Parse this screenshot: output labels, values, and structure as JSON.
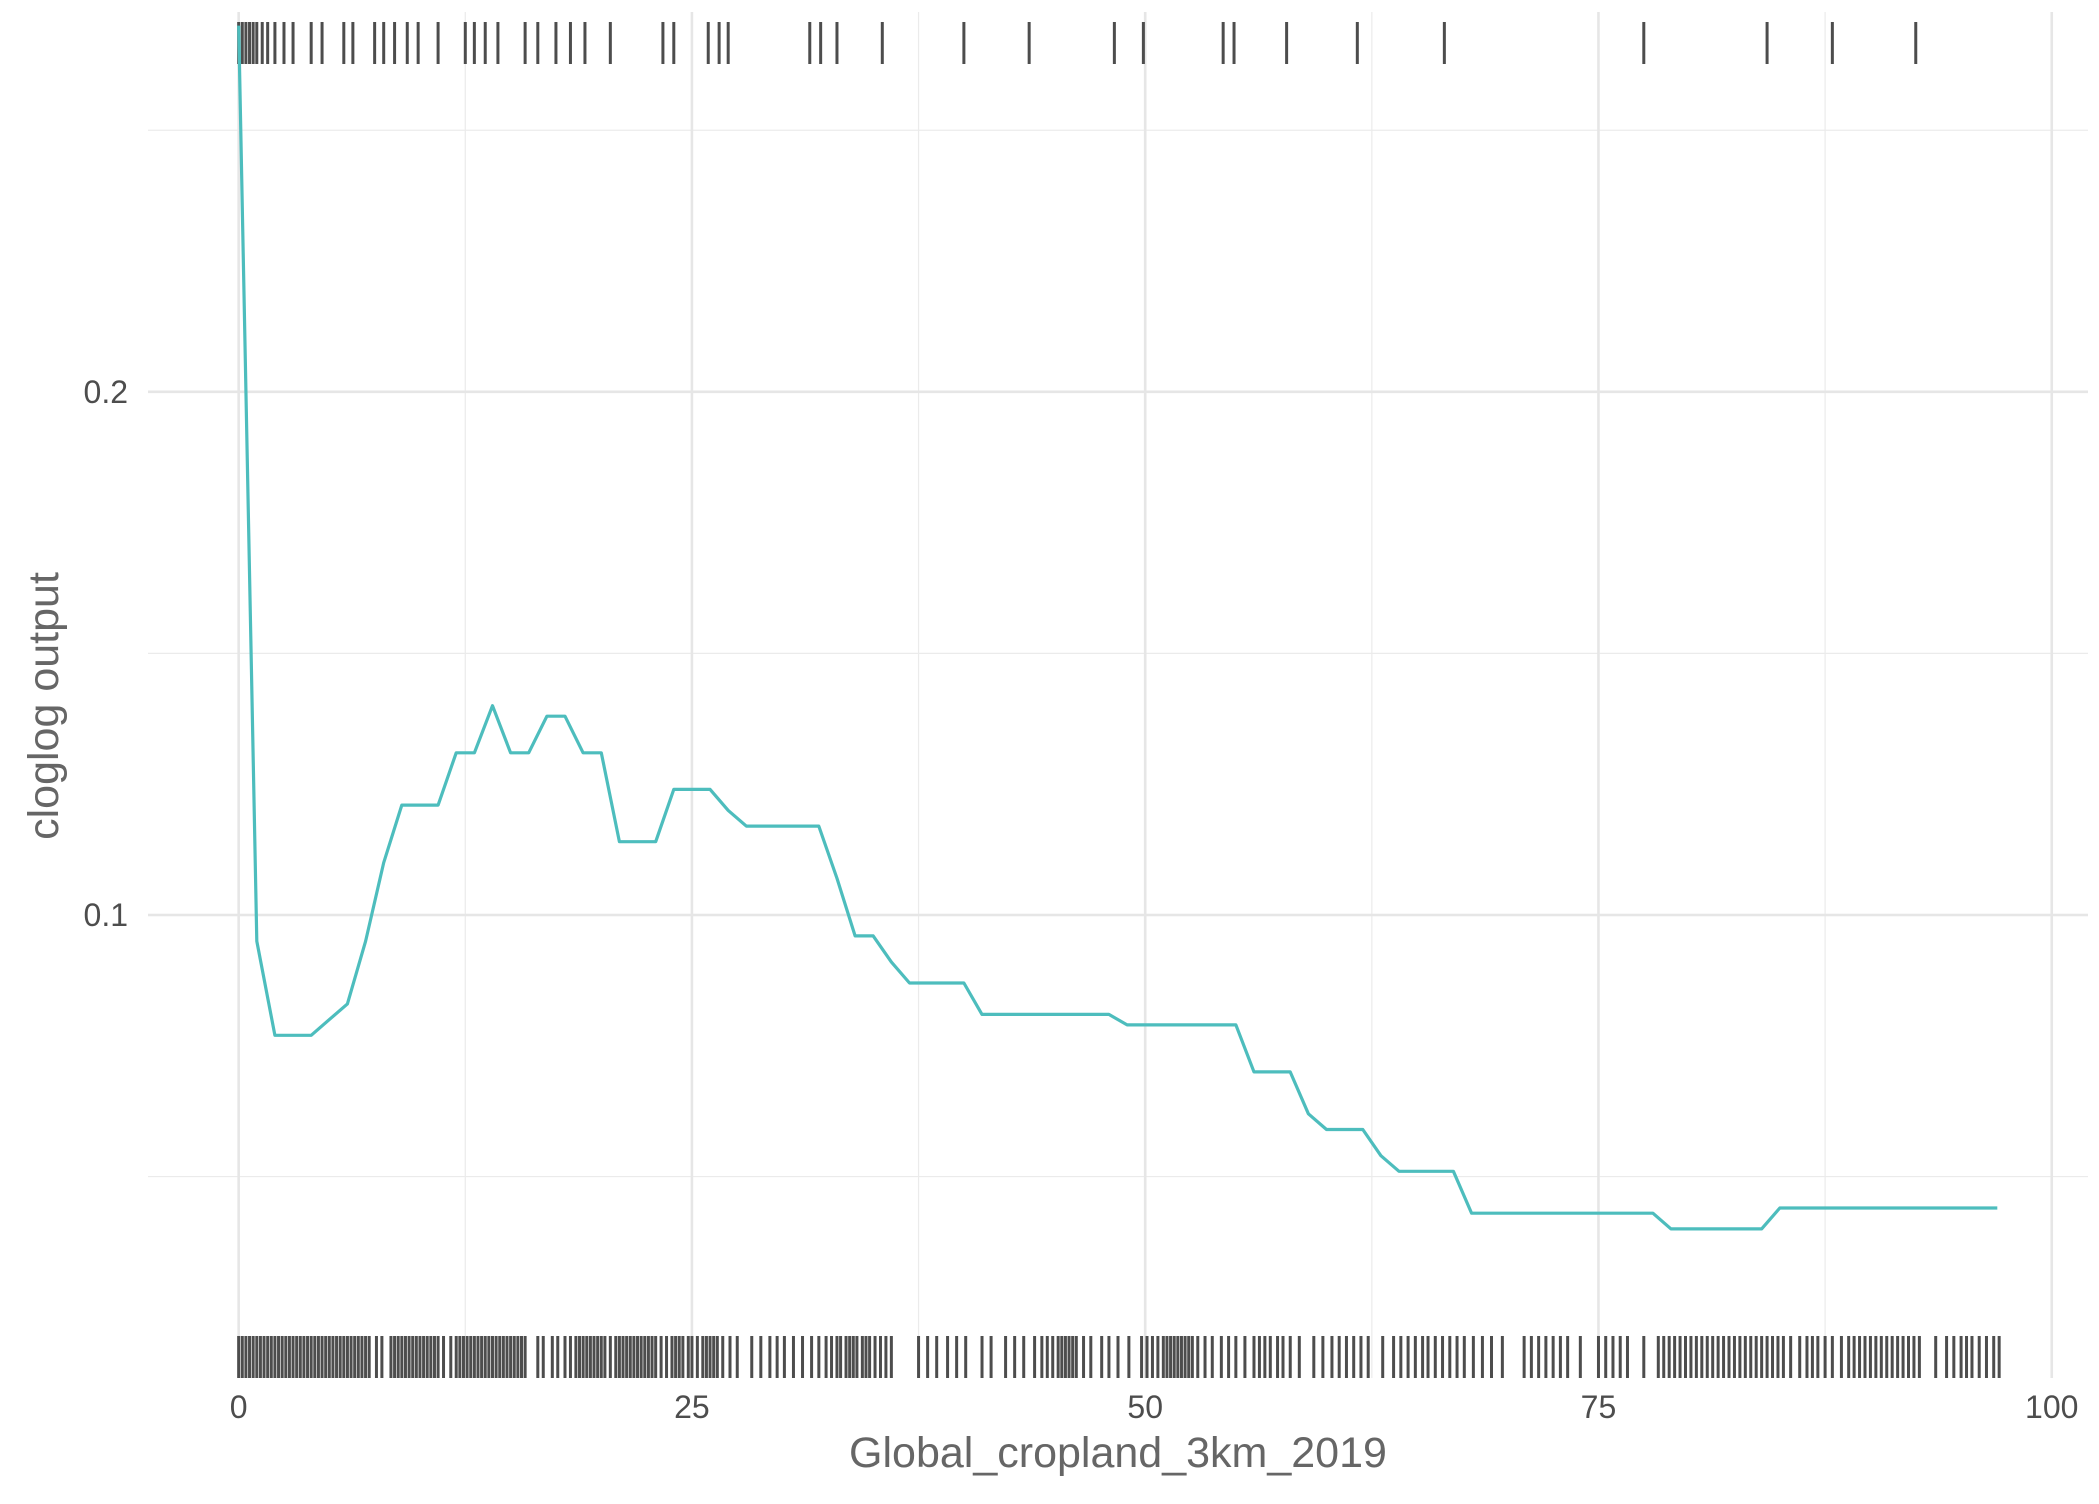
{
  "chart_data": {
    "type": "line",
    "title": "",
    "xlabel": "Global_cropland_3km_2019",
    "ylabel": "cloglog output",
    "xlim": [
      -5,
      102
    ],
    "ylim": [
      0.0115,
      0.2726
    ],
    "x_ticks": [
      0,
      25,
      50,
      75,
      100
    ],
    "y_ticks": [
      0.1,
      0.2
    ],
    "x_tick_labels": [
      "0",
      "25",
      "50",
      "75",
      "100"
    ],
    "y_tick_labels": [
      "0.1",
      "0.2"
    ],
    "grid": true,
    "line_color": "#4dbdbd",
    "rug_color": "#4d4d4d",
    "series": [
      {
        "x": [
          0,
          1,
          2,
          3,
          4,
          5,
          6,
          7,
          8,
          9,
          10,
          11,
          12,
          13,
          14,
          15,
          16,
          17,
          18,
          19,
          20,
          21,
          22,
          23,
          24,
          25,
          26,
          27,
          28,
          29,
          30,
          31,
          32,
          33,
          34,
          35,
          36,
          37,
          38,
          39,
          40,
          41,
          42,
          43,
          44,
          45,
          46,
          47,
          48,
          49,
          50,
          51,
          52,
          53,
          54,
          55,
          56,
          57,
          58,
          59,
          60,
          61,
          62,
          63,
          64,
          65,
          66,
          67,
          68,
          69,
          70,
          71,
          72,
          73,
          74,
          75,
          76,
          77,
          78,
          79,
          80,
          81,
          82,
          83,
          84,
          85,
          86,
          87,
          88,
          89,
          90,
          91,
          92,
          93,
          94,
          95,
          96,
          97
        ],
        "y": [
          0.27,
          0.095,
          0.077,
          0.077,
          0.077,
          0.08,
          0.083,
          0.095,
          0.11,
          0.121,
          0.121,
          0.121,
          0.131,
          0.131,
          0.14,
          0.131,
          0.131,
          0.138,
          0.138,
          0.131,
          0.131,
          0.114,
          0.114,
          0.114,
          0.124,
          0.124,
          0.124,
          0.12,
          0.117,
          0.117,
          0.117,
          0.117,
          0.117,
          0.107,
          0.096,
          0.096,
          0.091,
          0.087,
          0.087,
          0.087,
          0.087,
          0.081,
          0.081,
          0.081,
          0.081,
          0.081,
          0.081,
          0.081,
          0.081,
          0.079,
          0.079,
          0.079,
          0.079,
          0.079,
          0.079,
          0.079,
          0.07,
          0.07,
          0.07,
          0.062,
          0.059,
          0.059,
          0.059,
          0.054,
          0.051,
          0.051,
          0.051,
          0.051,
          0.043,
          0.043,
          0.043,
          0.043,
          0.043,
          0.043,
          0.043,
          0.043,
          0.043,
          0.043,
          0.043,
          0.04,
          0.04,
          0.04,
          0.04,
          0.04,
          0.04,
          0.044,
          0.044,
          0.044,
          0.044,
          0.044,
          0.044,
          0.044,
          0.044,
          0.044,
          0.044,
          0.044,
          0.044,
          0.044
        ]
      }
    ],
    "rug_top": [
      0,
      0.2,
      0.4,
      0.6,
      0.8,
      1,
      1.3,
      1.6,
      2,
      2.5,
      3,
      4,
      4.6,
      5.8,
      6.3,
      7.5,
      8,
      8.6,
      9.3,
      9.9,
      11,
      12.5,
      13,
      13.6,
      14.3,
      15.8,
      16.5,
      17.5,
      18.3,
      19.1,
      20.5,
      23.4,
      24,
      25.9,
      26.5,
      27,
      31.5,
      32.1,
      33,
      35.5,
      40,
      43.6,
      48.3,
      49.9,
      54.3,
      54.9,
      57.8,
      61.7,
      66.5,
      77.5,
      84.3,
      87.9,
      92.5
    ],
    "rug_bottom": [
      0,
      0.2,
      0.4,
      0.6,
      0.8,
      1,
      1.2,
      1.4,
      1.6,
      1.8,
      2,
      2.2,
      2.4,
      2.6,
      2.8,
      3,
      3.2,
      3.4,
      3.6,
      3.8,
      4,
      4.2,
      4.4,
      4.6,
      4.8,
      5,
      5.2,
      5.4,
      5.6,
      5.8,
      6,
      6.2,
      6.4,
      6.6,
      6.8,
      7,
      7.2,
      7.6,
      7.9,
      8.4,
      8.6,
      8.8,
      9,
      9.2,
      9.4,
      9.6,
      9.8,
      10,
      10.2,
      10.4,
      10.6,
      10.8,
      11,
      11.3,
      11.7,
      12,
      12.2,
      12.4,
      12.6,
      12.8,
      13,
      13.2,
      13.4,
      13.6,
      13.8,
      14,
      14.2,
      14.4,
      14.6,
      14.8,
      15,
      15.2,
      15.4,
      15.6,
      15.8,
      16.5,
      16.8,
      17.3,
      17.6,
      18,
      18.3,
      18.6,
      18.8,
      19,
      19.2,
      19.4,
      19.6,
      19.8,
      20,
      20.2,
      20.5,
      20.8,
      21,
      21.2,
      21.4,
      21.6,
      21.8,
      22,
      22.2,
      22.4,
      22.6,
      22.8,
      23,
      23.3,
      23.6,
      23.9,
      24.1,
      24.3,
      24.5,
      24.8,
      25,
      25.3,
      25.6,
      25.8,
      26,
      26.2,
      26.4,
      26.7,
      27.1,
      27.5,
      28.3,
      28.8,
      29.3,
      29.7,
      30.1,
      30.6,
      31.1,
      31.6,
      32,
      32.4,
      32.7,
      33,
      33.2,
      33.5,
      33.7,
      33.9,
      34.1,
      34.4,
      34.6,
      34.8,
      35.1,
      35.4,
      35.7,
      36,
      37.5,
      38,
      38.5,
      39.1,
      39.6,
      40.1,
      41,
      41.5,
      42.3,
      42.8,
      43.3,
      43.9,
      44.3,
      44.6,
      44.9,
      45.2,
      45.4,
      45.6,
      45.8,
      46,
      46.2,
      46.6,
      47,
      47.6,
      48,
      48.5,
      49.1,
      49.8,
      50.1,
      50.4,
      50.7,
      51,
      51.2,
      51.4,
      51.6,
      51.8,
      52,
      52.2,
      52.4,
      52.6,
      52.9,
      53.3,
      53.7,
      54.2,
      54.6,
      55,
      55.5,
      56,
      56.3,
      56.6,
      56.9,
      57.3,
      57.6,
      58,
      58.5,
      59.3,
      59.8,
      60.3,
      60.7,
      61.1,
      61.5,
      61.9,
      62.3,
      63.1,
      63.7,
      64.1,
      64.5,
      64.9,
      65.3,
      65.6,
      66,
      66.4,
      66.8,
      67.2,
      67.6,
      68.1,
      68.6,
      69.1,
      69.7,
      70.9,
      71.3,
      71.7,
      72.1,
      72.5,
      72.9,
      73.3,
      74,
      75,
      75.4,
      75.8,
      76.2,
      76.6,
      77.5,
      78.3,
      78.6,
      78.9,
      79.2,
      79.5,
      79.8,
      80.1,
      80.4,
      80.7,
      81,
      81.3,
      81.6,
      81.9,
      82.2,
      82.5,
      82.8,
      83.1,
      83.4,
      83.7,
      84,
      84.3,
      84.6,
      84.9,
      85.2,
      85.6,
      86.1,
      86.5,
      86.8,
      87.1,
      87.5,
      87.9,
      88.4,
      88.8,
      89.1,
      89.4,
      89.7,
      90,
      90.3,
      90.6,
      90.9,
      91.2,
      91.5,
      91.8,
      92.1,
      92.4,
      92.7,
      93.6,
      94.2,
      94.6,
      95,
      95.3,
      95.6,
      96,
      96.4,
      96.8,
      97.1
    ]
  }
}
